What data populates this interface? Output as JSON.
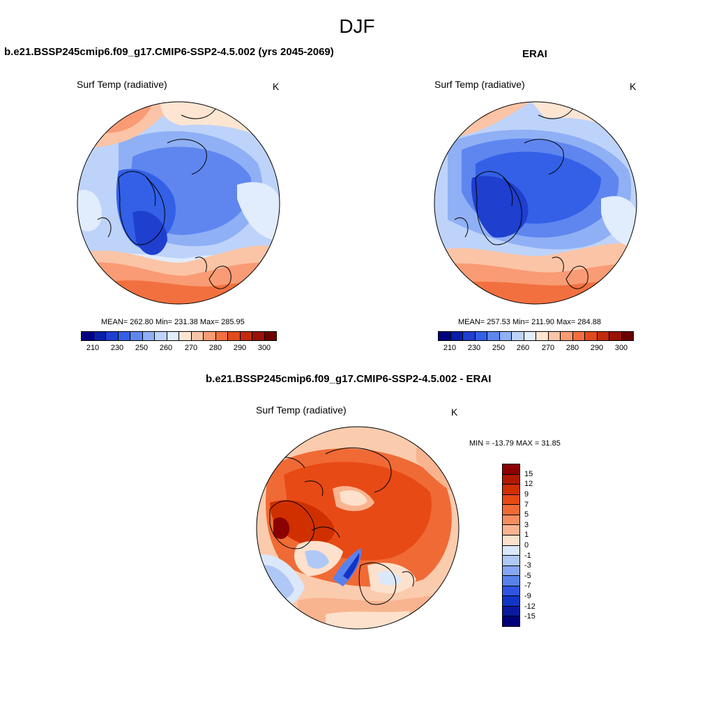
{
  "figure_title": "DJF",
  "panels": {
    "model": {
      "title": "b.e21.BSSP245cmip6.f09_g17.CMIP6-SSP2-4.5.002 (yrs 2045-2069)",
      "variable": "Surf Temp (radiative)",
      "units": "K",
      "stats": "MEAN= 262.80  Min= 231.38  Max= 285.95",
      "mean": 262.8,
      "min": 231.38,
      "max": 285.95
    },
    "obs": {
      "title": "ERAI",
      "variable": "Surf Temp (radiative)",
      "units": "K",
      "stats": "MEAN= 257.53  Min= 211.90  Max= 284.88",
      "mean": 257.53,
      "min": 211.9,
      "max": 284.88
    },
    "diff": {
      "title": "b.e21.BSSP245cmip6.f09_g17.CMIP6-SSP2-4.5.002 - ERAI",
      "variable": "Surf Temp (radiative)",
      "units": "K",
      "stats": "MIN = -13.79 MAX =  31.85",
      "min": -13.79,
      "max": 31.85
    }
  },
  "colorbar_abs": {
    "labels": [
      "210",
      "230",
      "250",
      "260",
      "270",
      "280",
      "290",
      "300"
    ],
    "colors": [
      "#00007f",
      "#0a1fa8",
      "#1f3fcf",
      "#3360e6",
      "#5f86ef",
      "#8fb0f5",
      "#bed3fa",
      "#e1ecfd",
      "#fde5d2",
      "#fbc4a6",
      "#f99b74",
      "#f2703f",
      "#e04a1c",
      "#c22b0c",
      "#9a1206",
      "#6b0000"
    ]
  },
  "colorbar_diff": {
    "labels": [
      "15",
      "12",
      "9",
      "7",
      "5",
      "3",
      "1",
      "0",
      "-1",
      "-3",
      "-5",
      "-7",
      "-9",
      "-12",
      "-15"
    ],
    "colors": [
      "#8b0000",
      "#b01a00",
      "#d03000",
      "#e84a15",
      "#f06a35",
      "#f48e60",
      "#f8b48f",
      "#fde1cc",
      "#dbe8fb",
      "#afc8f6",
      "#86a7f1",
      "#5a82ec",
      "#2f56e3",
      "#1235c7",
      "#0a1aa0",
      "#00007a"
    ]
  }
}
